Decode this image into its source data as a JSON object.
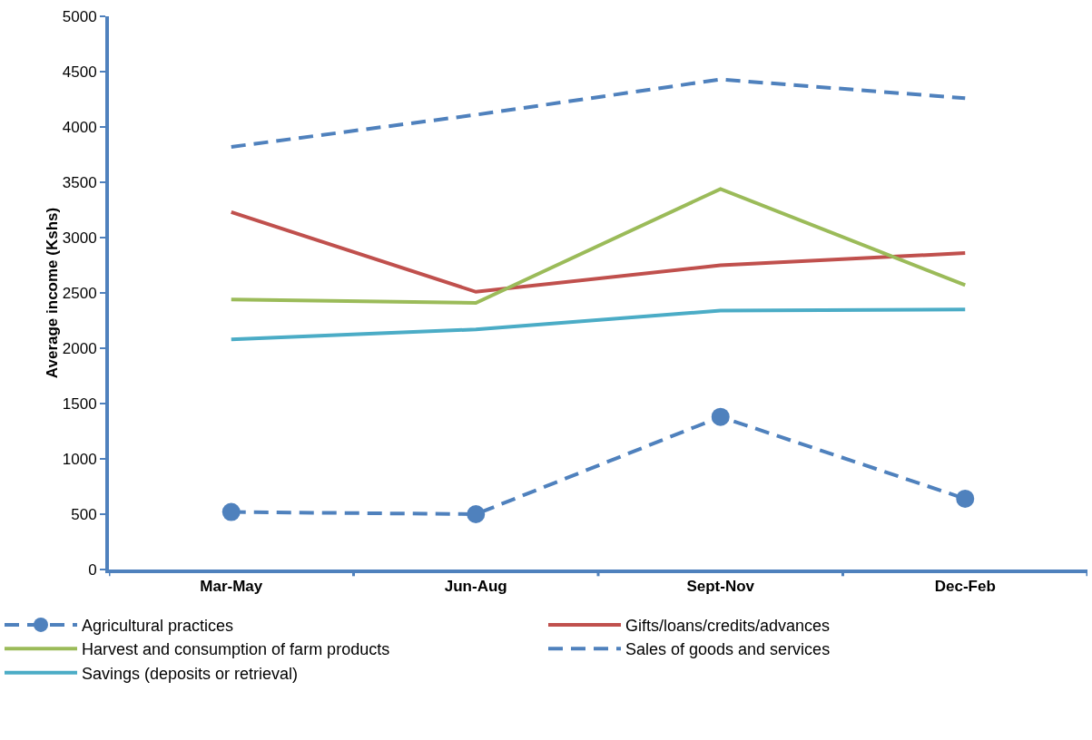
{
  "chart_data": {
    "type": "line",
    "ylabel": "Average income (Kshs)",
    "categories": [
      "Mar-May",
      "Jun-Aug",
      "Sept-Nov",
      "Dec-Feb"
    ],
    "ylim": [
      0,
      5000
    ],
    "yticks": [
      0,
      500,
      1000,
      1500,
      2000,
      2500,
      3000,
      3500,
      4000,
      4500,
      5000
    ],
    "grid": false,
    "legend": "bottom",
    "series": [
      {
        "name": "Agricultural practices",
        "color": "#4f81bd",
        "values": [
          520,
          500,
          1380,
          640
        ],
        "marker": "circle",
        "line_style": "dashed"
      },
      {
        "name": "Gifts/loans/credits/advances",
        "color": "#c0504d",
        "values": [
          3230,
          2510,
          2750,
          2860
        ],
        "marker": "none",
        "line_style": "solid"
      },
      {
        "name": "Harvest and consumption of farm products",
        "color": "#9bbb59",
        "values": [
          2440,
          2410,
          3440,
          2570
        ],
        "marker": "none",
        "line_style": "solid"
      },
      {
        "name": "Sales of goods and services",
        "color": "#4f81bd",
        "values": [
          3820,
          4110,
          4430,
          4260
        ],
        "marker": "none",
        "line_style": "dashed"
      },
      {
        "name": "Savings (deposits or retrieval)",
        "color": "#4bacc6",
        "values": [
          2080,
          2170,
          2340,
          2350
        ],
        "marker": "none",
        "line_style": "solid"
      }
    ]
  }
}
